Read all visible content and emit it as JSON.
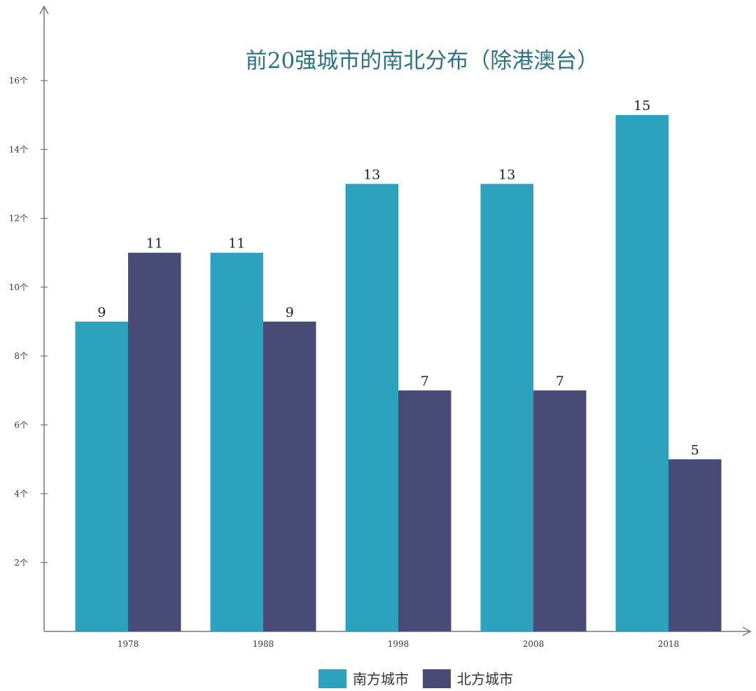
{
  "chart_data": {
    "type": "bar",
    "title": "前20强城市的南北分布（除港澳台）",
    "categories": [
      "1978",
      "1988",
      "1998",
      "2008",
      "2018"
    ],
    "series": [
      {
        "name": "南方城市",
        "values": [
          9,
          11,
          13,
          13,
          15
        ],
        "color": "#2ca2bf"
      },
      {
        "name": "北方城市",
        "values": [
          11,
          9,
          7,
          7,
          5
        ],
        "color": "#474b75"
      }
    ],
    "yticks": [
      2,
      4,
      6,
      8,
      10,
      12,
      14,
      16
    ],
    "ytick_suffix": "个",
    "ylim": [
      0,
      16
    ],
    "grid": false,
    "legend": "bottom",
    "title_color": "#2b7384",
    "axis_color": "#777777"
  }
}
